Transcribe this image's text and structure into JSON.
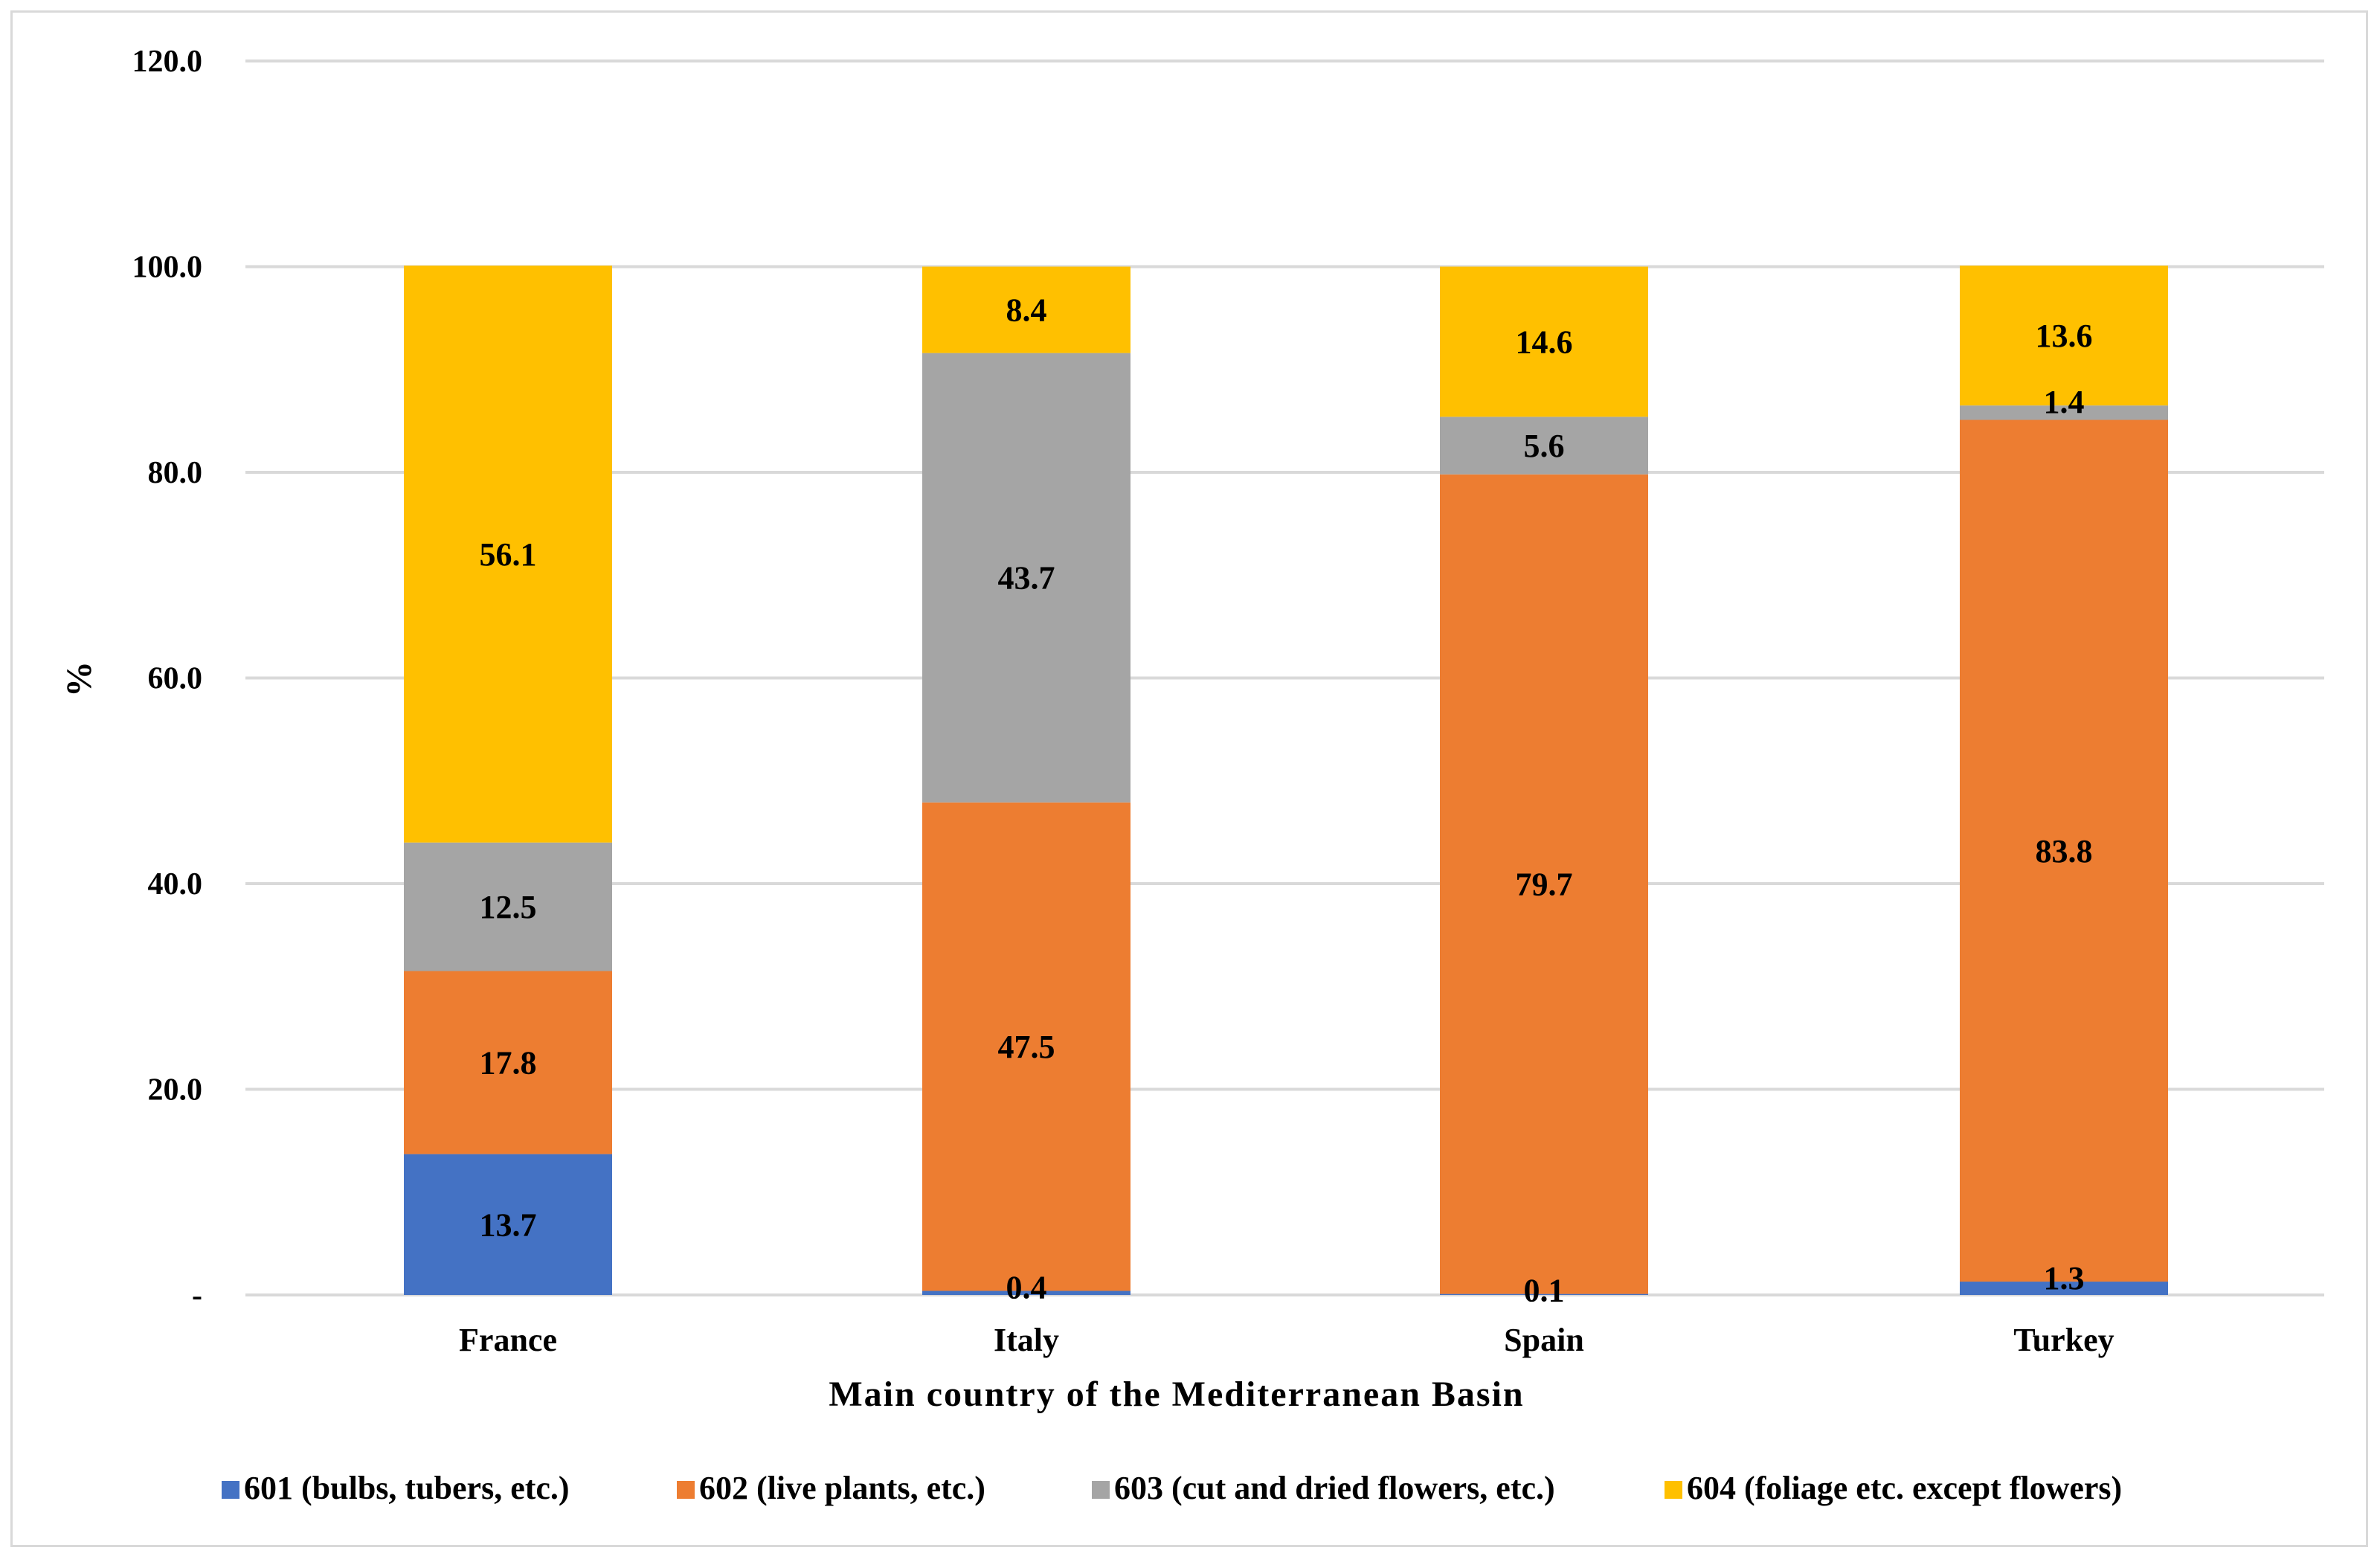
{
  "chart_data": {
    "type": "bar",
    "stacked": true,
    "title": "",
    "xlabel": "Main country of the Mediterranean Basin",
    "ylabel": "%",
    "ylim": [
      0,
      120
    ],
    "yticks": [
      0,
      20,
      40,
      60,
      80,
      100,
      120
    ],
    "ytick_labels": [
      "-",
      "20.0",
      "40.0",
      "60.0",
      "80.0",
      "100.0",
      "120.0"
    ],
    "grid": true,
    "legend_position": "bottom",
    "categories": [
      "France",
      "Italy",
      "Spain",
      "Turkey"
    ],
    "series": [
      {
        "name": "601 (bulbs, tubers, etc.)",
        "color": "#4472C4",
        "values": [
          13.7,
          0.4,
          0.1,
          1.3
        ],
        "labels": [
          "13.7",
          "0.4",
          "0.1",
          "1.3"
        ]
      },
      {
        "name": "602 (live plants, etc.)",
        "color": "#ED7D31",
        "values": [
          17.8,
          47.5,
          79.7,
          83.8
        ],
        "labels": [
          "17.8",
          "47.5",
          "79.7",
          "83.8"
        ]
      },
      {
        "name": "603 (cut and dried flowers, etc.)",
        "color": "#A5A5A5",
        "values": [
          12.5,
          43.7,
          5.6,
          1.4
        ],
        "labels": [
          "12.5",
          "43.7",
          "5.6",
          "1.4"
        ]
      },
      {
        "name": "604 (foliage etc. except flowers)",
        "color": "#FFC000",
        "values": [
          56.1,
          8.4,
          14.6,
          13.6
        ],
        "labels": [
          "56.1",
          "8.4",
          "14.6",
          "13.6"
        ]
      }
    ]
  }
}
